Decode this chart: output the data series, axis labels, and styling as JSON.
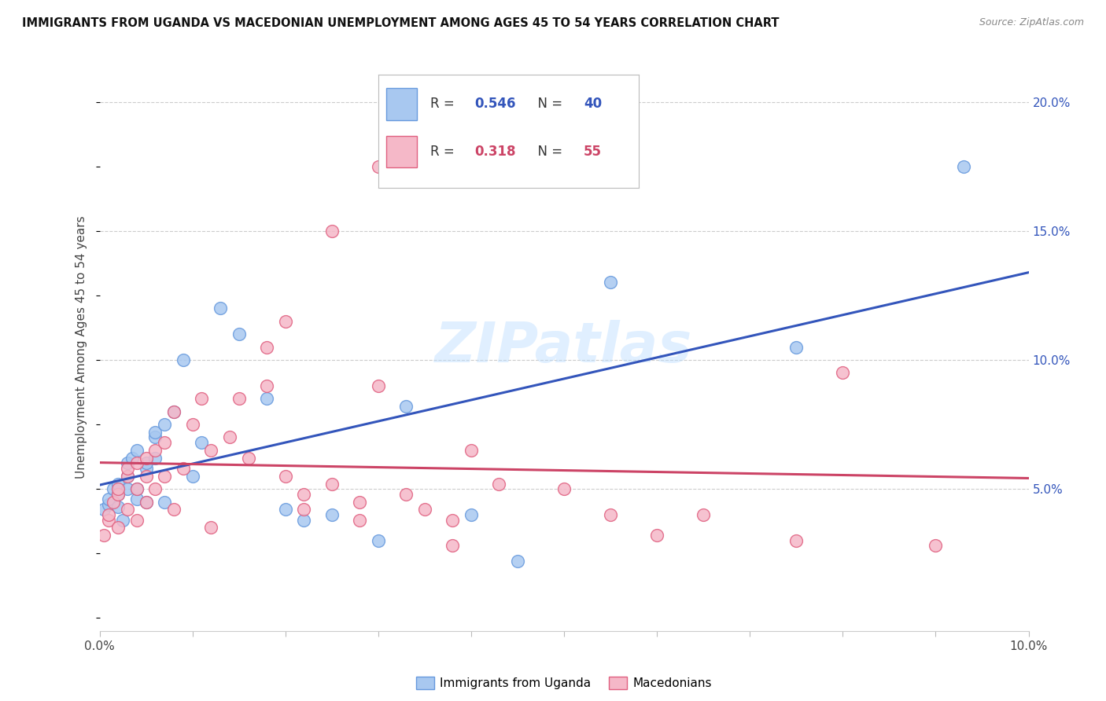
{
  "title": "IMMIGRANTS FROM UGANDA VS MACEDONIAN UNEMPLOYMENT AMONG AGES 45 TO 54 YEARS CORRELATION CHART",
  "source": "Source: ZipAtlas.com",
  "ylabel": "Unemployment Among Ages 45 to 54 years",
  "legend1_label": "Immigrants from Uganda",
  "legend2_label": "Macedonians",
  "R1": "0.546",
  "N1": "40",
  "R2": "0.318",
  "N2": "55",
  "color_blue": "#a8c8f0",
  "color_pink": "#f5b8c8",
  "color_blue_edge": "#6699dd",
  "color_pink_edge": "#e06080",
  "color_blue_line": "#3355bb",
  "color_pink_line": "#cc4466",
  "color_blue_text": "#3355bb",
  "color_pink_text": "#cc4466",
  "watermark": "ZIPatlas",
  "xlim": [
    0.0,
    0.1
  ],
  "ylim": [
    -0.005,
    0.215
  ],
  "ytick_vals": [
    0.05,
    0.1,
    0.15,
    0.2
  ],
  "ytick_labels": [
    "5.0%",
    "10.0%",
    "15.0%",
    "20.0%"
  ],
  "uganda_x": [
    0.0005,
    0.001,
    0.001,
    0.0015,
    0.002,
    0.002,
    0.002,
    0.0025,
    0.003,
    0.003,
    0.003,
    0.0035,
    0.004,
    0.004,
    0.004,
    0.005,
    0.005,
    0.005,
    0.006,
    0.006,
    0.006,
    0.007,
    0.007,
    0.008,
    0.009,
    0.01,
    0.011,
    0.013,
    0.015,
    0.018,
    0.02,
    0.022,
    0.025,
    0.03,
    0.033,
    0.04,
    0.045,
    0.055,
    0.075,
    0.093
  ],
  "uganda_y": [
    0.042,
    0.044,
    0.046,
    0.05,
    0.043,
    0.048,
    0.052,
    0.038,
    0.05,
    0.055,
    0.06,
    0.062,
    0.046,
    0.05,
    0.065,
    0.058,
    0.06,
    0.045,
    0.07,
    0.072,
    0.062,
    0.075,
    0.045,
    0.08,
    0.1,
    0.055,
    0.068,
    0.12,
    0.11,
    0.085,
    0.042,
    0.038,
    0.04,
    0.03,
    0.082,
    0.04,
    0.022,
    0.13,
    0.105,
    0.175
  ],
  "macedonian_x": [
    0.0005,
    0.001,
    0.001,
    0.0015,
    0.002,
    0.002,
    0.002,
    0.003,
    0.003,
    0.003,
    0.004,
    0.004,
    0.004,
    0.005,
    0.005,
    0.005,
    0.006,
    0.006,
    0.007,
    0.007,
    0.008,
    0.008,
    0.009,
    0.01,
    0.011,
    0.012,
    0.014,
    0.016,
    0.018,
    0.02,
    0.022,
    0.025,
    0.028,
    0.03,
    0.033,
    0.035,
    0.038,
    0.04,
    0.043,
    0.05,
    0.055,
    0.06,
    0.065,
    0.075,
    0.08,
    0.09,
    0.03,
    0.025,
    0.02,
    0.018,
    0.015,
    0.038,
    0.028,
    0.022,
    0.012
  ],
  "macedonian_y": [
    0.032,
    0.038,
    0.04,
    0.045,
    0.035,
    0.048,
    0.05,
    0.042,
    0.055,
    0.058,
    0.038,
    0.05,
    0.06,
    0.045,
    0.055,
    0.062,
    0.05,
    0.065,
    0.068,
    0.055,
    0.042,
    0.08,
    0.058,
    0.075,
    0.085,
    0.065,
    0.07,
    0.062,
    0.09,
    0.055,
    0.048,
    0.052,
    0.045,
    0.09,
    0.048,
    0.042,
    0.038,
    0.065,
    0.052,
    0.05,
    0.04,
    0.032,
    0.04,
    0.03,
    0.095,
    0.028,
    0.175,
    0.15,
    0.115,
    0.105,
    0.085,
    0.028,
    0.038,
    0.042,
    0.035
  ]
}
